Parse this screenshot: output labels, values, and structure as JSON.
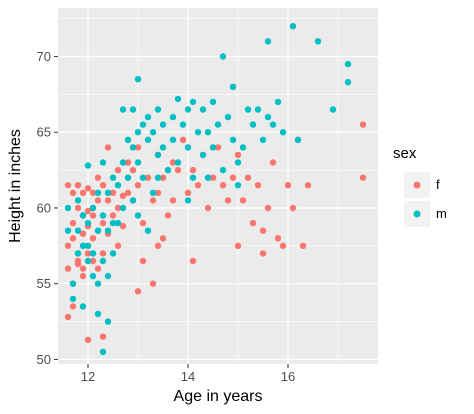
{
  "chart_data": {
    "type": "scatter",
    "xlabel": "Age in years",
    "ylabel": "Height in inches",
    "xlim": [
      11.4,
      17.8
    ],
    "ylim": [
      49.7,
      73.2
    ],
    "x_ticks": [
      12,
      14,
      16
    ],
    "y_ticks": [
      50,
      55,
      60,
      65,
      70
    ],
    "grid": true,
    "legend": {
      "title": "sex",
      "position": "right",
      "entries": [
        {
          "label": "f",
          "color": "#F8766D"
        },
        {
          "label": "m",
          "color": "#00BFC4"
        }
      ]
    },
    "series": [
      {
        "name": "f",
        "color": "#F8766D",
        "points": [
          [
            11.6,
            61.5
          ],
          [
            11.6,
            57.5
          ],
          [
            11.6,
            56.0
          ],
          [
            11.6,
            52.8
          ],
          [
            11.7,
            61.0
          ],
          [
            11.7,
            59.0
          ],
          [
            11.7,
            58.0
          ],
          [
            11.7,
            55.0
          ],
          [
            11.7,
            53.5
          ],
          [
            11.8,
            61.5
          ],
          [
            11.8,
            60.0
          ],
          [
            11.8,
            57.0
          ],
          [
            11.8,
            56.5
          ],
          [
            11.8,
            56.3
          ],
          [
            11.9,
            61.0
          ],
          [
            11.9,
            59.5
          ],
          [
            11.9,
            58.3
          ],
          [
            11.9,
            56.0
          ],
          [
            11.9,
            55.5
          ],
          [
            12.0,
            61.3
          ],
          [
            12.0,
            59.8
          ],
          [
            12.0,
            58.8
          ],
          [
            12.0,
            57.0
          ],
          [
            12.0,
            51.3
          ],
          [
            12.1,
            61.0
          ],
          [
            12.1,
            59.5
          ],
          [
            12.1,
            58.0
          ],
          [
            12.1,
            56.5
          ],
          [
            12.2,
            62.0
          ],
          [
            12.2,
            60.5
          ],
          [
            12.2,
            58.5
          ],
          [
            12.2,
            56.0
          ],
          [
            12.3,
            61.5
          ],
          [
            12.3,
            59.0
          ],
          [
            12.3,
            57.0
          ],
          [
            12.3,
            51.5
          ],
          [
            12.4,
            64.0
          ],
          [
            12.4,
            60.5
          ],
          [
            12.4,
            58.3
          ],
          [
            12.5,
            61.0
          ],
          [
            12.5,
            59.5
          ],
          [
            12.6,
            62.5
          ],
          [
            12.6,
            60.0
          ],
          [
            12.6,
            57.5
          ],
          [
            12.7,
            60.8
          ],
          [
            12.7,
            58.8
          ],
          [
            12.8,
            63.0
          ],
          [
            12.8,
            61.0
          ],
          [
            12.9,
            62.5
          ],
          [
            13.0,
            64.0
          ],
          [
            13.0,
            61.5
          ],
          [
            13.0,
            54.5
          ],
          [
            13.1,
            59.0
          ],
          [
            13.2,
            62.0
          ],
          [
            13.3,
            60.5
          ],
          [
            13.4,
            63.5
          ],
          [
            13.4,
            61.0
          ],
          [
            13.4,
            57.5
          ],
          [
            13.5,
            62.0
          ],
          [
            13.6,
            59.5
          ],
          [
            13.7,
            63.0
          ],
          [
            13.7,
            60.5
          ],
          [
            13.8,
            62.5
          ],
          [
            13.9,
            64.5
          ],
          [
            14.0,
            61.0
          ],
          [
            14.1,
            62.5
          ],
          [
            14.2,
            61.5
          ],
          [
            14.3,
            63.5
          ],
          [
            14.4,
            60.0
          ],
          [
            14.5,
            62.0
          ],
          [
            14.6,
            64.0
          ],
          [
            14.7,
            61.5
          ],
          [
            14.8,
            60.5
          ],
          [
            14.9,
            62.0
          ],
          [
            15.0,
            63.5
          ],
          [
            15.1,
            60.5
          ],
          [
            15.2,
            62.0
          ],
          [
            15.3,
            59.0
          ],
          [
            15.4,
            61.5
          ],
          [
            15.5,
            57.0
          ],
          [
            15.6,
            60.0
          ],
          [
            15.7,
            63.0
          ],
          [
            15.8,
            58.0
          ],
          [
            15.9,
            57.5
          ],
          [
            16.0,
            61.5
          ],
          [
            16.1,
            60.0
          ],
          [
            16.2,
            64.5
          ],
          [
            16.4,
            61.5
          ],
          [
            17.5,
            65.5
          ],
          [
            17.5,
            62.0
          ],
          [
            13.1,
            56.5
          ],
          [
            13.3,
            55.0
          ],
          [
            13.5,
            58.0
          ],
          [
            14.1,
            56.5
          ],
          [
            15.0,
            57.5
          ],
          [
            15.5,
            58.5
          ],
          [
            16.3,
            57.5
          ]
        ]
      },
      {
        "name": "m",
        "color": "#00BFC4",
        "points": [
          [
            11.6,
            60.0
          ],
          [
            11.6,
            58.5
          ],
          [
            11.7,
            55.0
          ],
          [
            11.7,
            54.0
          ],
          [
            11.8,
            60.5
          ],
          [
            11.8,
            58.5
          ],
          [
            11.8,
            57.0
          ],
          [
            11.9,
            59.5
          ],
          [
            11.9,
            57.5
          ],
          [
            11.9,
            53.5
          ],
          [
            12.0,
            62.8
          ],
          [
            12.0,
            59.0
          ],
          [
            12.0,
            57.5
          ],
          [
            12.0,
            56.5
          ],
          [
            12.1,
            60.0
          ],
          [
            12.1,
            57.0
          ],
          [
            12.1,
            55.5
          ],
          [
            12.2,
            61.0
          ],
          [
            12.2,
            58.5
          ],
          [
            12.2,
            55.0
          ],
          [
            12.3,
            63.0
          ],
          [
            12.3,
            59.5
          ],
          [
            12.3,
            56.5
          ],
          [
            12.3,
            50.5
          ],
          [
            12.4,
            61.0
          ],
          [
            12.4,
            58.5
          ],
          [
            12.4,
            55.5
          ],
          [
            12.5,
            62.0
          ],
          [
            12.5,
            59.0
          ],
          [
            12.5,
            57.0
          ],
          [
            12.6,
            61.5
          ],
          [
            12.6,
            59.0
          ],
          [
            12.7,
            66.5
          ],
          [
            12.7,
            63.0
          ],
          [
            12.7,
            60.0
          ],
          [
            12.8,
            64.5
          ],
          [
            12.8,
            62.0
          ],
          [
            12.9,
            66.5
          ],
          [
            12.9,
            64.0
          ],
          [
            12.9,
            60.5
          ],
          [
            13.0,
            68.5
          ],
          [
            13.0,
            65.0
          ],
          [
            13.0,
            63.0
          ],
          [
            13.0,
            59.5
          ],
          [
            13.1,
            65.5
          ],
          [
            13.1,
            62.0
          ],
          [
            13.2,
            66.0
          ],
          [
            13.2,
            64.5
          ],
          [
            13.3,
            65.0
          ],
          [
            13.3,
            61.0
          ],
          [
            13.4,
            66.5
          ],
          [
            13.4,
            63.5
          ],
          [
            13.4,
            62.0
          ],
          [
            13.5,
            65.5
          ],
          [
            13.5,
            64.0
          ],
          [
            13.6,
            62.5
          ],
          [
            13.7,
            66.0
          ],
          [
            13.7,
            64.5
          ],
          [
            13.8,
            67.2
          ],
          [
            13.8,
            63.0
          ],
          [
            13.9,
            65.5
          ],
          [
            14.0,
            66.5
          ],
          [
            14.0,
            64.0
          ],
          [
            14.1,
            67.0
          ],
          [
            14.1,
            62.0
          ],
          [
            14.2,
            65.0
          ],
          [
            14.3,
            66.5
          ],
          [
            14.3,
            63.5
          ],
          [
            14.4,
            65.0
          ],
          [
            14.4,
            62.0
          ],
          [
            14.5,
            67.0
          ],
          [
            14.5,
            64.0
          ],
          [
            14.6,
            65.5
          ],
          [
            14.7,
            62.5
          ],
          [
            14.8,
            66.0
          ],
          [
            14.9,
            68.0
          ],
          [
            14.9,
            64.5
          ],
          [
            15.0,
            63.0
          ],
          [
            15.0,
            61.5
          ],
          [
            15.1,
            64.0
          ],
          [
            15.2,
            66.5
          ],
          [
            15.3,
            65.5
          ],
          [
            15.4,
            66.5
          ],
          [
            15.5,
            64.5
          ],
          [
            15.6,
            71.0
          ],
          [
            15.6,
            66.0
          ],
          [
            15.7,
            65.5
          ],
          [
            15.8,
            67.0
          ],
          [
            15.9,
            65.0
          ],
          [
            16.1,
            72.0
          ],
          [
            16.2,
            64.5
          ],
          [
            16.6,
            71.0
          ],
          [
            16.9,
            66.5
          ],
          [
            17.2,
            69.5
          ],
          [
            17.2,
            68.3
          ],
          [
            12.2,
            53.0
          ],
          [
            12.4,
            52.5
          ],
          [
            13.2,
            58.5
          ],
          [
            14.0,
            60.5
          ],
          [
            14.7,
            70.0
          ]
        ]
      }
    ]
  }
}
